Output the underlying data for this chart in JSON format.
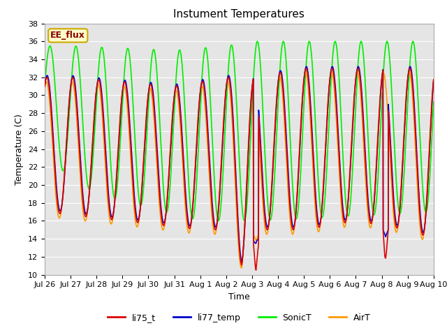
{
  "title": "Instument Temperatures",
  "xlabel": "Time",
  "ylabel": "Temperature (C)",
  "ylim": [
    10,
    38
  ],
  "xlim_days": 15,
  "background_color": "#e5e5e5",
  "legend_label": "EE_flux",
  "legend_box_color": "#ffffcc",
  "legend_box_edge": "#ccaa00",
  "x_tick_labels": [
    "Jul 26",
    "Jul 27",
    "Jul 28",
    "Jul 29",
    "Jul 30",
    "Jul 31",
    "Aug 1",
    "Aug 2",
    "Aug 3",
    "Aug 4",
    "Aug 5",
    "Aug 6",
    "Aug 7",
    "Aug 8",
    "Aug 9",
    "Aug 10"
  ],
  "series_colors": {
    "li75_t": "#dd0000",
    "li77_temp": "#0000cc",
    "SonicT": "#00ee00",
    "AirT": "#ff9900"
  },
  "legend_series": [
    {
      "label": "li75_t",
      "color": "#dd0000"
    },
    {
      "label": "li77_temp",
      "color": "#0000cc"
    },
    {
      "label": "SonicT",
      "color": "#00ee00"
    },
    {
      "label": "AirT",
      "color": "#ff9900"
    }
  ]
}
